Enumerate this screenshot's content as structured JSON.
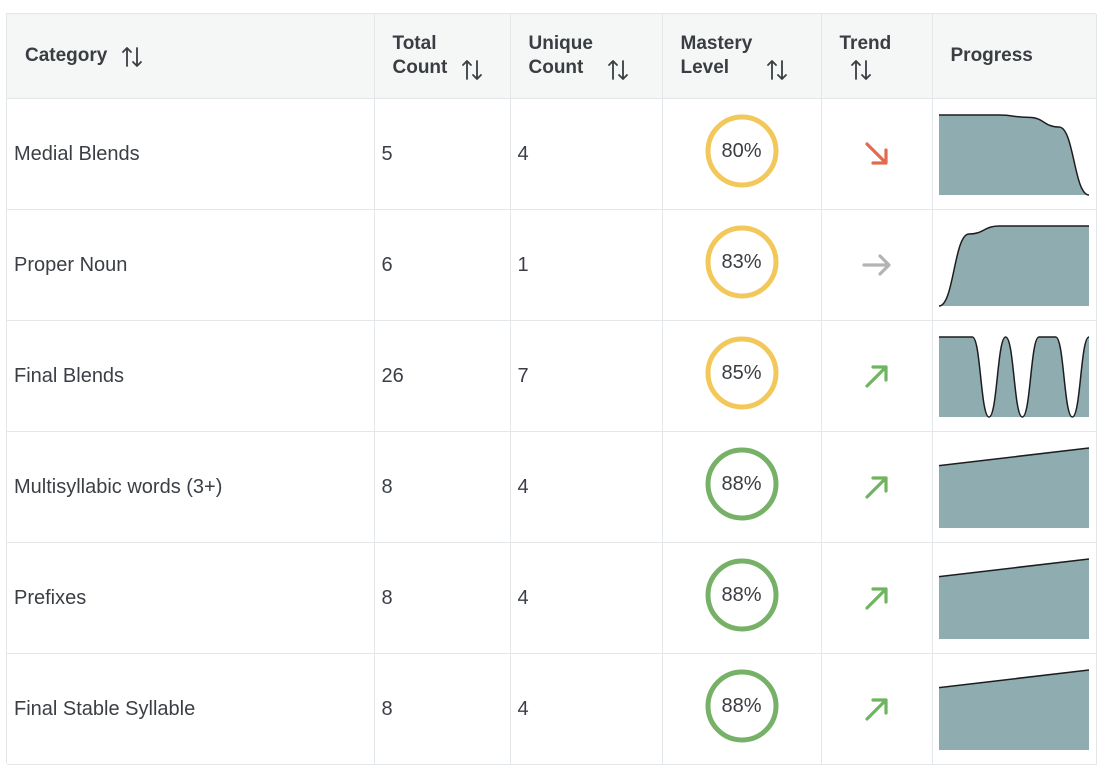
{
  "headers": {
    "category": "Category",
    "total_line1": "Total",
    "total_line2": "Count",
    "unique_line1": "Unique",
    "unique_line2": "Count",
    "mastery_line1": "Mastery",
    "mastery_line2": "Level",
    "trend": "Trend",
    "progress": "Progress"
  },
  "colors": {
    "yellow_ring": "#f3c85a",
    "green_ring": "#77b167",
    "down_arrow": "#e46a4e",
    "flat_arrow": "#b3b3b3",
    "up_arrow": "#6fb45e",
    "spark_fill": "#8fadb0",
    "spark_line": "#1d1d1d"
  },
  "rows": [
    {
      "category": "Medial Blends",
      "total": "5",
      "unique": "4",
      "mastery": "80%",
      "mastery_color": "yellow",
      "trend": "down",
      "trend_icon": "arrow-down-right-icon",
      "progress": [
        1,
        1,
        1,
        0.97,
        0.85,
        0
      ]
    },
    {
      "category": "Proper Noun",
      "total": "6",
      "unique": "1",
      "mastery": "83%",
      "mastery_color": "yellow",
      "trend": "flat",
      "trend_icon": "arrow-right-icon",
      "progress": [
        0,
        0.9,
        1,
        1,
        1,
        1
      ]
    },
    {
      "category": "Final Blends",
      "total": "26",
      "unique": "7",
      "mastery": "85%",
      "mastery_color": "yellow",
      "trend": "up",
      "trend_icon": "arrow-up-right-icon",
      "progress": [
        1,
        1,
        1,
        0,
        1,
        0,
        1,
        1,
        0,
        1
      ]
    },
    {
      "category": "Multisyllabic words (3+)",
      "total": "8",
      "unique": "4",
      "mastery": "88%",
      "mastery_color": "green",
      "trend": "up",
      "trend_icon": "arrow-up-right-icon",
      "progress": [
        0.78,
        1
      ]
    },
    {
      "category": "Prefixes",
      "total": "8",
      "unique": "4",
      "mastery": "88%",
      "mastery_color": "green",
      "trend": "up",
      "trend_icon": "arrow-up-right-icon",
      "progress": [
        0.78,
        1
      ]
    },
    {
      "category": "Final Stable Syllable",
      "total": "8",
      "unique": "4",
      "mastery": "88%",
      "mastery_color": "green",
      "trend": "up",
      "trend_icon": "arrow-up-right-icon",
      "progress": [
        0.78,
        1
      ]
    }
  ]
}
